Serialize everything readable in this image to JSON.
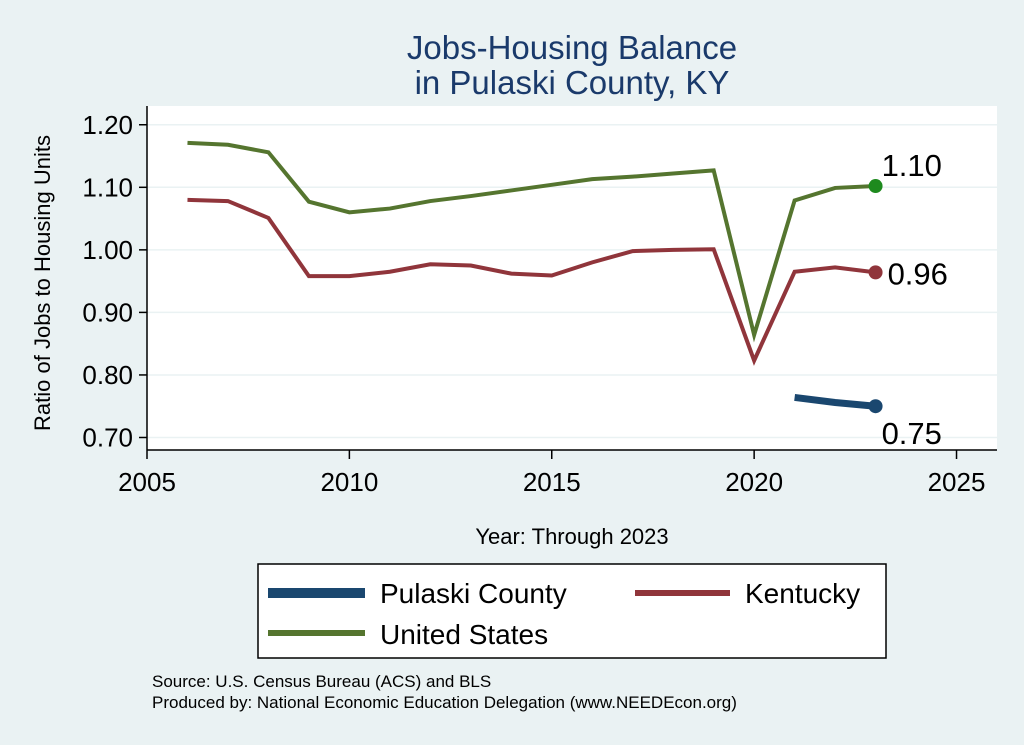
{
  "chart_data": {
    "type": "line",
    "title": [
      "Jobs-Housing Balance",
      "in Pulaski County, KY"
    ],
    "xlabel": "Year: Through 2023",
    "ylabel": "Ratio of Jobs to Housing Units",
    "xlim": [
      2005,
      2026
    ],
    "ylim": [
      0.68,
      1.23
    ],
    "xticks": [
      2005,
      2010,
      2015,
      2020,
      2025
    ],
    "yticks": [
      0.7,
      0.8,
      0.9,
      1.0,
      1.1,
      1.2
    ],
    "ytick_labels": [
      "0.70",
      "0.80",
      "0.90",
      "1.00",
      "1.10",
      "1.20"
    ],
    "grid": true,
    "legend_position": "bottom",
    "series": [
      {
        "name": "Pulaski County",
        "color": "#1a476f",
        "x": [
          2021,
          2022,
          2023
        ],
        "y": [
          0.764,
          0.756,
          0.75
        ],
        "end_label": "0.75"
      },
      {
        "name": "Kentucky",
        "color": "#90353b",
        "x": [
          2006,
          2007,
          2008,
          2009,
          2010,
          2011,
          2012,
          2013,
          2014,
          2015,
          2016,
          2017,
          2018,
          2019,
          2020,
          2021,
          2022,
          2023
        ],
        "y": [
          1.08,
          1.078,
          1.051,
          0.958,
          0.958,
          0.965,
          0.977,
          0.975,
          0.962,
          0.959,
          0.98,
          0.998,
          1.0,
          1.001,
          0.823,
          0.965,
          0.972,
          0.964
        ],
        "end_label": "0.96"
      },
      {
        "name": "United States",
        "color": "#55752f",
        "x": [
          2006,
          2007,
          2008,
          2009,
          2010,
          2011,
          2012,
          2013,
          2014,
          2015,
          2016,
          2017,
          2018,
          2019,
          2020,
          2021,
          2022,
          2023
        ],
        "y": [
          1.171,
          1.168,
          1.156,
          1.077,
          1.06,
          1.066,
          1.078,
          1.086,
          1.095,
          1.104,
          1.113,
          1.117,
          1.122,
          1.127,
          0.864,
          1.079,
          1.099,
          1.102
        ],
        "end_label": "1.10"
      }
    ],
    "end_marker_colors": {
      "Pulaski County": "#1a476f",
      "Kentucky": "#90353b",
      "United States": "#1e8a1e"
    }
  },
  "source_lines": [
    "Source: U.S. Census Bureau (ACS) and BLS",
    "Produced by: National Economic Education Delegation (www.NEEDEcon.org)"
  ]
}
